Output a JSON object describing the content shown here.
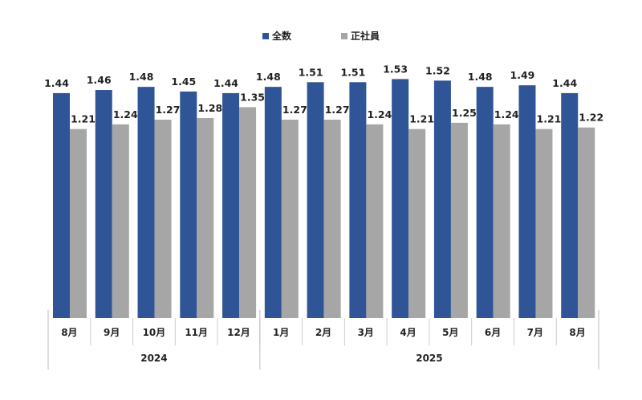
{
  "chart_data": {
    "type": "bar",
    "title": "",
    "xlabel": "",
    "ylabel": "",
    "ylim": [
      0,
      2.0
    ],
    "grid": false,
    "legend_position": "top-center",
    "categories": [
      "8月",
      "9月",
      "10月",
      "11月",
      "12月",
      "1月",
      "2月",
      "3月",
      "4月",
      "5月",
      "6月",
      "7月",
      "8月"
    ],
    "groups": [
      {
        "label": "2024",
        "count": 5
      },
      {
        "label": "2025",
        "count": 8
      }
    ],
    "series": [
      {
        "name": "全数",
        "color": "#2f5597",
        "values": [
          1.44,
          1.46,
          1.48,
          1.45,
          1.44,
          1.48,
          1.51,
          1.51,
          1.53,
          1.52,
          1.48,
          1.49,
          1.44
        ]
      },
      {
        "name": "正社員",
        "color": "#a6a6a6",
        "values": [
          1.21,
          1.24,
          1.27,
          1.28,
          1.35,
          1.27,
          1.27,
          1.24,
          1.21,
          1.25,
          1.24,
          1.21,
          1.22
        ]
      }
    ]
  }
}
